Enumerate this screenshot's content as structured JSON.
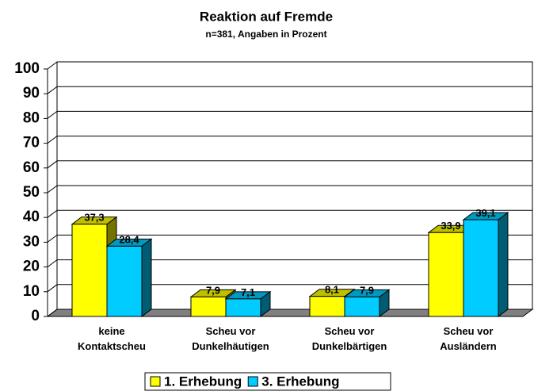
{
  "chart_data": {
    "type": "bar3d",
    "title": "Reaktion auf Fremde",
    "subtitle": "n=381, Angaben in Prozent",
    "categories": [
      "keine Kontaktscheu",
      "Scheu vor Dunkelhäutigen",
      "Scheu vor Dunkelbärtigen",
      "Scheu vor Ausländern"
    ],
    "series": [
      {
        "name": "1. Erhebung",
        "color": "#ffff00",
        "values": [
          37.3,
          7.9,
          8.1,
          33.9
        ],
        "value_labels": [
          "37,3",
          "7,9",
          "8,1",
          "33,9"
        ]
      },
      {
        "name": "3. Erhebung",
        "color": "#00ccff",
        "values": [
          28.4,
          7.1,
          7.9,
          39.1
        ],
        "value_labels": [
          "28,4",
          "7,1",
          "7,9",
          "39,1"
        ]
      }
    ],
    "ylim": [
      0,
      100
    ],
    "yticks": [
      0,
      10,
      20,
      30,
      40,
      50,
      60,
      70,
      80,
      90,
      100
    ],
    "grid": true,
    "legend": "bottom"
  }
}
